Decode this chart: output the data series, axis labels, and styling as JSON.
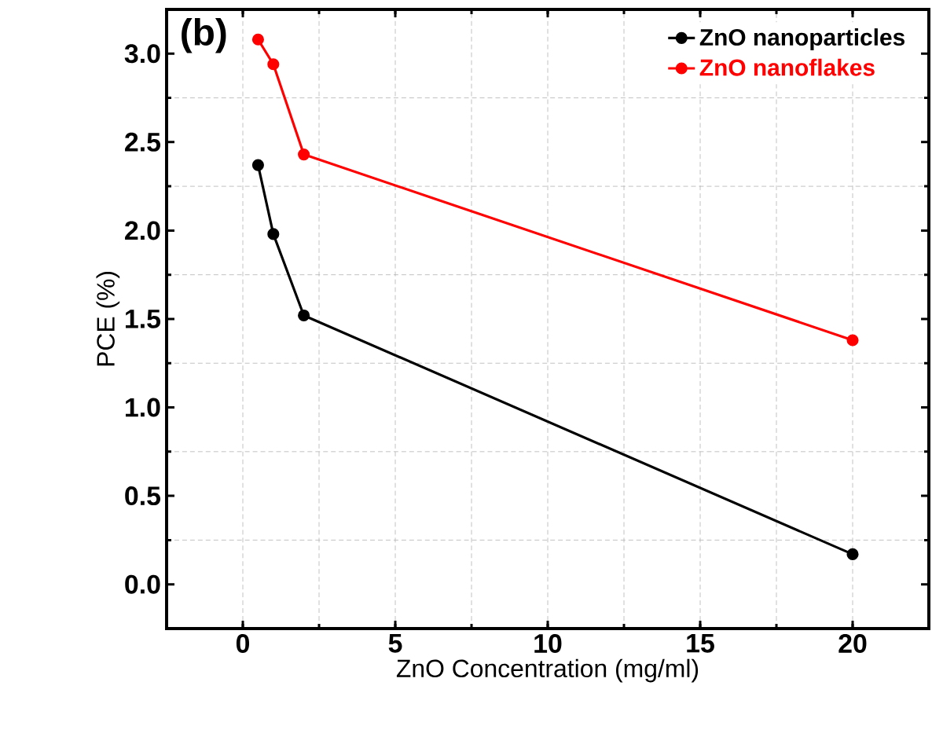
{
  "chart_data": {
    "type": "line",
    "xlabel": "ZnO Concentration (mg/ml)",
    "ylabel": "PCE (%)",
    "x": [
      0.5,
      1,
      2,
      20
    ],
    "series": [
      {
        "name": "ZnO nanoparticles",
        "color": "#000000",
        "values": [
          2.37,
          1.98,
          1.52,
          0.17
        ]
      },
      {
        "name": "ZnO nanoflakes",
        "color": "#ff0000",
        "values": [
          3.08,
          2.94,
          2.43,
          1.38
        ]
      }
    ],
    "xlim": [
      -2.5,
      22.5
    ],
    "xticks": [
      0,
      5,
      10,
      15,
      20
    ],
    "ylim": [
      -0.25,
      3.25
    ],
    "yticks": [
      {
        "value": 0,
        "label": "0.0"
      },
      {
        "value": 0.5,
        "label": "0.5"
      },
      {
        "value": 1,
        "label": "1.0"
      },
      {
        "value": 1.5,
        "label": "1.5"
      },
      {
        "value": 2,
        "label": "2.0"
      },
      {
        "value": 2.5,
        "label": "2.5"
      },
      {
        "value": 3,
        "label": "3.0"
      }
    ],
    "annotations": [
      "(b)"
    ],
    "grid": true,
    "legend": "top right",
    "marker": "circle",
    "line_style": "solid"
  }
}
